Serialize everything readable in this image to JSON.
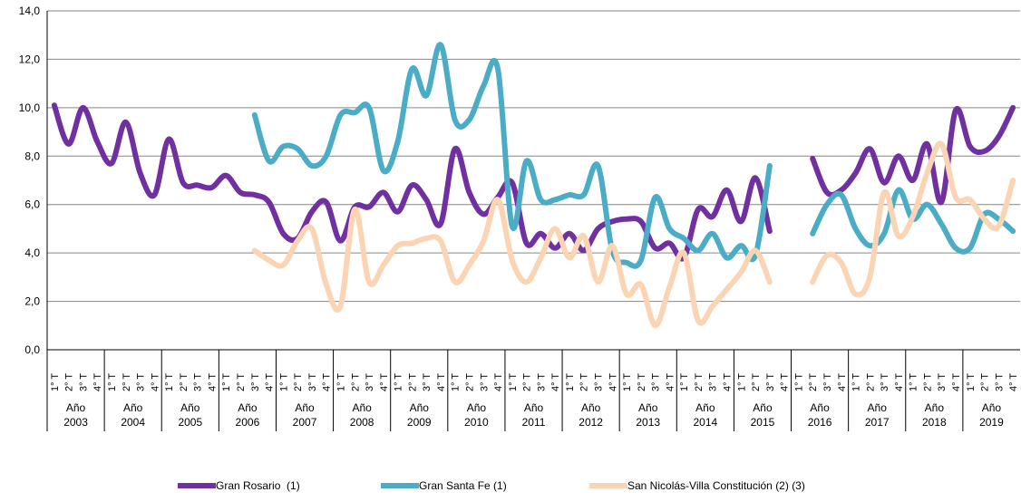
{
  "chart_data": {
    "type": "line",
    "categories": [
      "1° T",
      "2° T",
      "3° T",
      "4° T",
      "1° T",
      "2° T",
      "3° T",
      "4° T",
      "1° T",
      "2° T",
      "3° T",
      "4° T",
      "1° T",
      "2° T",
      "3° T",
      "4° T",
      "1° T",
      "2° T",
      "3° T",
      "4° T",
      "1° T",
      "2° T",
      "3° T",
      "4° T",
      "1° T",
      "2° T",
      "3° T",
      "4° T",
      "1° T",
      "2° T",
      "3° T",
      "4° T",
      "1° T",
      "2° T",
      "3° T",
      "4° T",
      "1° T",
      "2° T",
      "3° T",
      "4° T",
      "1° T",
      "2° T",
      "3° T",
      "4° T",
      "1° T",
      "2° T",
      "3° T",
      "4° T",
      "1° T",
      "2° T",
      "3° T",
      "4° T",
      "1° T",
      "2° T",
      "3° T",
      "4° T",
      "1° T",
      "2° T",
      "3° T",
      "4° T",
      "1° T",
      "2° T",
      "3° T",
      "4° T",
      "1° T",
      "2° T",
      "3° T",
      "4° T"
    ],
    "category_groups": [
      "Año 2003",
      "Año 2004",
      "Año 2005",
      "Año 2006",
      "Año 2007",
      "Año 2008",
      "Año 2009",
      "Año 2010",
      "Año 2011",
      "Año 2012",
      "Año 2013",
      "Año 2014",
      "Año 2015",
      "Año 2016",
      "Año 2017",
      "Año 2018",
      "Año 2019"
    ],
    "series": [
      {
        "name": "Gran Rosario  (1)",
        "color": "#7030a0",
        "values": [
          10.1,
          8.5,
          10.0,
          8.6,
          7.7,
          9.4,
          7.3,
          6.4,
          8.7,
          6.9,
          6.8,
          6.7,
          7.2,
          6.5,
          6.4,
          6.1,
          4.8,
          4.6,
          5.7,
          6.1,
          4.5,
          5.9,
          5.9,
          6.5,
          5.7,
          6.8,
          6.2,
          5.2,
          8.3,
          6.5,
          5.6,
          6.3,
          6.9,
          4.4,
          4.8,
          4.2,
          4.8,
          4.1,
          5.0,
          5.3,
          5.4,
          5.3,
          4.2,
          4.4,
          3.8,
          5.8,
          5.5,
          6.6,
          5.3,
          7.1,
          4.9,
          null,
          null,
          7.9,
          6.5,
          6.6,
          7.3,
          8.3,
          6.9,
          8.0,
          7.0,
          8.5,
          6.1,
          9.9,
          8.4,
          8.2,
          8.8,
          10.0
        ]
      },
      {
        "name": "Gran Santa Fe (1)",
        "color": "#4bacc6",
        "values": [
          null,
          null,
          null,
          null,
          null,
          null,
          null,
          null,
          null,
          null,
          null,
          null,
          null,
          null,
          9.7,
          7.8,
          8.4,
          8.3,
          7.6,
          8.0,
          9.7,
          9.8,
          10.0,
          7.4,
          8.6,
          11.6,
          10.5,
          12.6,
          9.5,
          9.5,
          10.9,
          11.6,
          5.1,
          7.8,
          6.2,
          6.2,
          6.4,
          6.4,
          7.6,
          4.1,
          3.6,
          3.7,
          6.3,
          5.0,
          4.6,
          4.1,
          4.8,
          3.8,
          4.3,
          3.9,
          7.6,
          null,
          null,
          4.8,
          6.0,
          6.4,
          5.0,
          4.3,
          4.8,
          6.6,
          5.4,
          6.0,
          5.2,
          4.2,
          4.2,
          5.6,
          5.4,
          4.9
        ]
      },
      {
        "name": "San Nicolás-Villa Constitución (2) (3)",
        "color": "#fbd4b4",
        "values": [
          null,
          null,
          null,
          null,
          null,
          null,
          null,
          null,
          null,
          null,
          null,
          null,
          null,
          null,
          4.1,
          3.7,
          3.5,
          4.5,
          5.0,
          2.7,
          1.8,
          5.8,
          2.8,
          3.5,
          4.3,
          4.4,
          4.6,
          4.5,
          2.8,
          3.5,
          4.5,
          6.2,
          3.7,
          2.8,
          3.8,
          5.0,
          3.8,
          4.7,
          2.8,
          4.3,
          2.3,
          2.7,
          1.0,
          2.6,
          4.0,
          1.2,
          1.8,
          2.5,
          3.2,
          4.1,
          2.8,
          null,
          null,
          2.8,
          3.9,
          3.6,
          2.3,
          3.0,
          6.5,
          4.7,
          5.5,
          7.3,
          8.5,
          6.3,
          6.2,
          5.4,
          5.1,
          7.0
        ]
      }
    ],
    "ylim": [
      0,
      14
    ],
    "yticks": [
      {
        "value": 0,
        "label": "0,0"
      },
      {
        "value": 2,
        "label": "2,0"
      },
      {
        "value": 4,
        "label": "4,0"
      },
      {
        "value": 6,
        "label": "6,0"
      },
      {
        "value": 8,
        "label": "8,0"
      },
      {
        "value": 10,
        "label": "10,0"
      },
      {
        "value": 12,
        "label": "12,0"
      },
      {
        "value": 14,
        "label": "14,0"
      }
    ],
    "grid": true,
    "legend": "bottom"
  }
}
